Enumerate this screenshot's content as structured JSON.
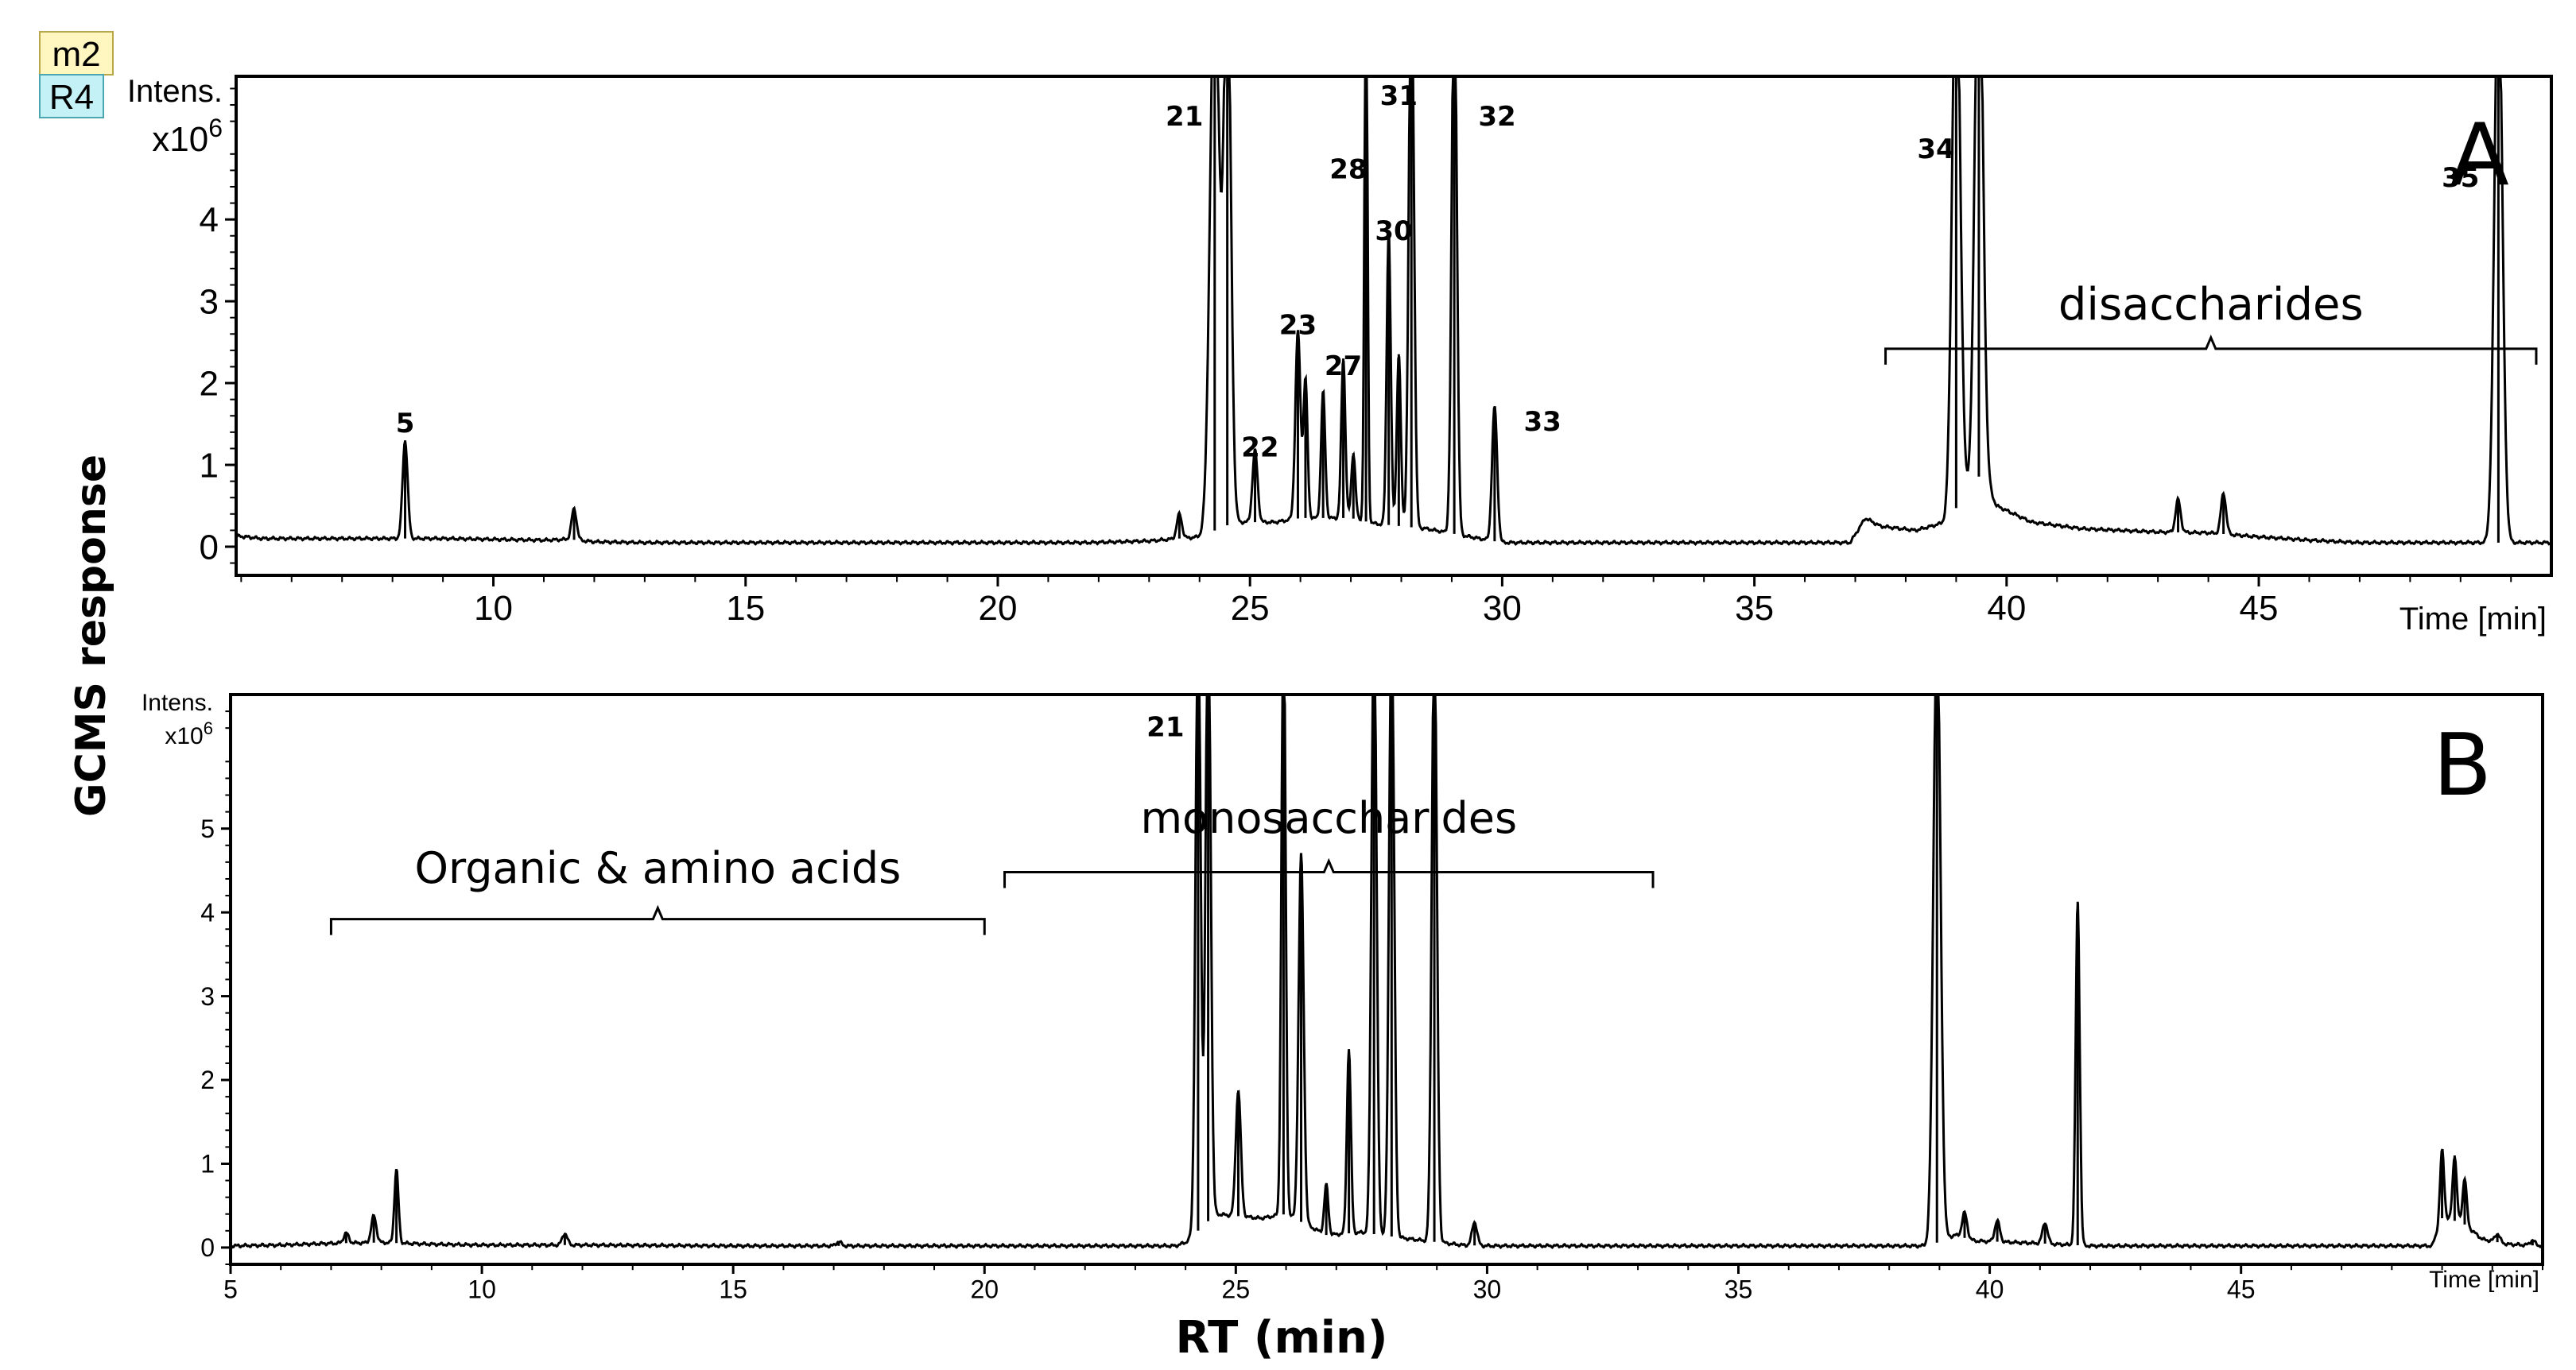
{
  "figure": {
    "badges": [
      "m2",
      "R4"
    ],
    "ylabel": "GCMS response",
    "xlabel": "RT (min)",
    "colors": {
      "badge_m2": "#fff7bf",
      "badge_m2_border": "#b8a84a",
      "badge_R4": "#c4f1f5",
      "badge_R4_border": "#4aa6b0",
      "line": "#000000"
    }
  },
  "chart_data": [
    {
      "type": "line",
      "panel": "A",
      "panel_label": "A",
      "intens_label": "Intens.",
      "scale_label": "x10",
      "scale_exp": "6",
      "x_end_label": "Time [min]",
      "xlim": [
        4.9,
        50.8
      ],
      "ylim": [
        -0.35,
        5.75
      ],
      "xticks": [
        10,
        15,
        20,
        25,
        30,
        35,
        40,
        45
      ],
      "yticks": [
        0,
        1,
        2,
        3,
        4
      ],
      "baseline_noise": [
        [
          4.9,
          0.13
        ],
        [
          5.1,
          0.12
        ],
        [
          5.4,
          0.1
        ],
        [
          6.0,
          0.1
        ],
        [
          7.0,
          0.1
        ],
        [
          8.0,
          0.1
        ],
        [
          9.0,
          0.1
        ],
        [
          10.0,
          0.09
        ],
        [
          11.0,
          0.08
        ],
        [
          11.5,
          0.09
        ],
        [
          12.0,
          0.06
        ],
        [
          13.0,
          0.05
        ],
        [
          15.0,
          0.05
        ],
        [
          20.0,
          0.05
        ],
        [
          21.8,
          0.05
        ],
        [
          23.0,
          0.07
        ],
        [
          24.0,
          0.12
        ],
        [
          24.7,
          0.3
        ],
        [
          25.5,
          0.3
        ],
        [
          26.0,
          0.35
        ],
        [
          27.0,
          0.35
        ],
        [
          27.5,
          0.28
        ],
        [
          28.5,
          0.22
        ],
        [
          29.1,
          0.15
        ],
        [
          30.0,
          0.05
        ],
        [
          32.0,
          0.05
        ],
        [
          36.9,
          0.05
        ],
        [
          37.2,
          0.35
        ],
        [
          37.5,
          0.25
        ],
        [
          38.2,
          0.2
        ],
        [
          38.8,
          0.3
        ],
        [
          39.5,
          0.9
        ],
        [
          39.8,
          0.5
        ],
        [
          40.5,
          0.3
        ],
        [
          41.5,
          0.22
        ],
        [
          43.0,
          0.18
        ],
        [
          44.0,
          0.17
        ],
        [
          45.0,
          0.12
        ],
        [
          46.0,
          0.08
        ],
        [
          47.0,
          0.05
        ],
        [
          49.5,
          0.05
        ],
        [
          50.0,
          0.05
        ],
        [
          50.8,
          0.05
        ]
      ],
      "peaks": [
        {
          "rt": 8.25,
          "h": 1.2,
          "w": 0.05
        },
        {
          "rt": 11.6,
          "h": 0.38,
          "w": 0.05
        },
        {
          "rt": 23.6,
          "h": 0.3,
          "w": 0.05
        },
        {
          "rt": 24.3,
          "h": 7.0,
          "w": 0.09
        },
        {
          "rt": 24.55,
          "h": 7.0,
          "w": 0.07
        },
        {
          "rt": 25.1,
          "h": 0.88,
          "w": 0.05
        },
        {
          "rt": 25.95,
          "h": 2.3,
          "w": 0.05
        },
        {
          "rt": 26.1,
          "h": 1.7,
          "w": 0.04
        },
        {
          "rt": 26.45,
          "h": 1.55,
          "w": 0.04
        },
        {
          "rt": 26.85,
          "h": 1.95,
          "w": 0.04
        },
        {
          "rt": 27.05,
          "h": 0.8,
          "w": 0.04
        },
        {
          "rt": 27.3,
          "h": 7.0,
          "w": 0.03
        },
        {
          "rt": 27.75,
          "h": 3.6,
          "w": 0.04
        },
        {
          "rt": 27.95,
          "h": 2.1,
          "w": 0.04
        },
        {
          "rt": 28.2,
          "h": 7.0,
          "w": 0.05
        },
        {
          "rt": 29.05,
          "h": 7.0,
          "w": 0.05
        },
        {
          "rt": 29.85,
          "h": 1.65,
          "w": 0.05
        },
        {
          "rt": 39.0,
          "h": 7.0,
          "w": 0.08
        },
        {
          "rt": 39.45,
          "h": 7.0,
          "w": 0.08
        },
        {
          "rt": 43.4,
          "h": 0.4,
          "w": 0.05
        },
        {
          "rt": 44.3,
          "h": 0.5,
          "w": 0.05
        },
        {
          "rt": 49.75,
          "h": 7.0,
          "w": 0.08
        }
      ],
      "peak_labels": [
        {
          "text": "5",
          "x": 8.25,
          "y": 1.4
        },
        {
          "text": "21",
          "x": 23.7,
          "y": 5.15
        },
        {
          "text": "22",
          "x": 25.2,
          "y": 1.1
        },
        {
          "text": "23",
          "x": 25.95,
          "y": 2.6
        },
        {
          "text": "27",
          "x": 26.85,
          "y": 2.1
        },
        {
          "text": "28",
          "x": 26.95,
          "y": 4.5
        },
        {
          "text": "30",
          "x": 27.85,
          "y": 3.75
        },
        {
          "text": "31",
          "x": 27.95,
          "y": 5.4
        },
        {
          "text": "32",
          "x": 29.9,
          "y": 5.15
        },
        {
          "text": "33",
          "x": 30.8,
          "y": 1.42
        },
        {
          "text": "34",
          "x": 38.6,
          "y": 4.75
        },
        {
          "text": "35",
          "x": 49.0,
          "y": 4.4
        }
      ],
      "brackets": [
        {
          "label": "disaccharides",
          "x0": 37.6,
          "x1": 50.5,
          "y": 2.42,
          "label_y": 2.78
        }
      ]
    },
    {
      "type": "line",
      "panel": "B",
      "panel_label": "B",
      "intens_label": "Intens.",
      "scale_label": "x10",
      "scale_exp": "6",
      "x_end_label": "Time [min]",
      "xlim": [
        5.0,
        51.0
      ],
      "ylim": [
        -0.2,
        6.6
      ],
      "xticks": [
        5,
        10,
        15,
        20,
        25,
        30,
        35,
        40,
        45
      ],
      "yticks": [
        0,
        1,
        2,
        3,
        4,
        5
      ],
      "baseline_noise": [
        [
          5.0,
          0.02
        ],
        [
          6.0,
          0.03
        ],
        [
          7.0,
          0.05
        ],
        [
          8.0,
          0.06
        ],
        [
          9.0,
          0.04
        ],
        [
          10.0,
          0.03
        ],
        [
          12.0,
          0.03
        ],
        [
          15.0,
          0.02
        ],
        [
          20.0,
          0.02
        ],
        [
          23.8,
          0.02
        ],
        [
          24.0,
          0.06
        ],
        [
          24.6,
          0.4
        ],
        [
          25.5,
          0.35
        ],
        [
          26.0,
          0.4
        ],
        [
          26.8,
          0.15
        ],
        [
          27.5,
          0.18
        ],
        [
          28.5,
          0.1
        ],
        [
          29.5,
          0.03
        ],
        [
          30.0,
          0.02
        ],
        [
          38.8,
          0.02
        ],
        [
          39.3,
          0.15
        ],
        [
          39.7,
          0.08
        ],
        [
          41.0,
          0.05
        ],
        [
          42.0,
          0.02
        ],
        [
          48.8,
          0.02
        ],
        [
          49.0,
          0.35
        ],
        [
          49.4,
          0.3
        ],
        [
          49.8,
          0.1
        ],
        [
          50.3,
          0.04
        ],
        [
          51.0,
          0.02
        ]
      ],
      "peaks": [
        {
          "rt": 7.3,
          "h": 0.12,
          "w": 0.05
        },
        {
          "rt": 7.85,
          "h": 0.32,
          "w": 0.05
        },
        {
          "rt": 8.3,
          "h": 0.88,
          "w": 0.04
        },
        {
          "rt": 11.65,
          "h": 0.14,
          "w": 0.05
        },
        {
          "rt": 17.1,
          "h": 0.05,
          "w": 0.05
        },
        {
          "rt": 24.25,
          "h": 7.5,
          "w": 0.05
        },
        {
          "rt": 24.45,
          "h": 7.5,
          "w": 0.05
        },
        {
          "rt": 25.05,
          "h": 1.5,
          "w": 0.05
        },
        {
          "rt": 25.95,
          "h": 7.5,
          "w": 0.04
        },
        {
          "rt": 26.3,
          "h": 4.4,
          "w": 0.05
        },
        {
          "rt": 26.8,
          "h": 0.6,
          "w": 0.04
        },
        {
          "rt": 27.25,
          "h": 2.2,
          "w": 0.04
        },
        {
          "rt": 27.75,
          "h": 7.5,
          "w": 0.05
        },
        {
          "rt": 28.1,
          "h": 7.5,
          "w": 0.05
        },
        {
          "rt": 28.95,
          "h": 7.5,
          "w": 0.05
        },
        {
          "rt": 29.75,
          "h": 0.28,
          "w": 0.05
        },
        {
          "rt": 38.95,
          "h": 7.5,
          "w": 0.07
        },
        {
          "rt": 39.5,
          "h": 0.3,
          "w": 0.05
        },
        {
          "rt": 40.15,
          "h": 0.25,
          "w": 0.05
        },
        {
          "rt": 41.1,
          "h": 0.25,
          "w": 0.05
        },
        {
          "rt": 41.75,
          "h": 4.1,
          "w": 0.04
        },
        {
          "rt": 49.0,
          "h": 0.82,
          "w": 0.04
        },
        {
          "rt": 49.25,
          "h": 0.78,
          "w": 0.04
        },
        {
          "rt": 49.45,
          "h": 0.55,
          "w": 0.04
        },
        {
          "rt": 50.1,
          "h": 0.1,
          "w": 0.05
        },
        {
          "rt": 50.8,
          "h": 0.06,
          "w": 0.05
        }
      ],
      "peak_labels": [
        {
          "text": "21",
          "x": 23.6,
          "y": 6.1
        }
      ],
      "brackets": [
        {
          "label": "Organic  & amino acids",
          "x0": 7.0,
          "x1": 20.0,
          "y": 3.92,
          "label_y": 4.35
        },
        {
          "label": "monosaccharides",
          "x0": 20.4,
          "x1": 33.3,
          "y": 4.48,
          "label_y": 4.95
        }
      ]
    }
  ]
}
